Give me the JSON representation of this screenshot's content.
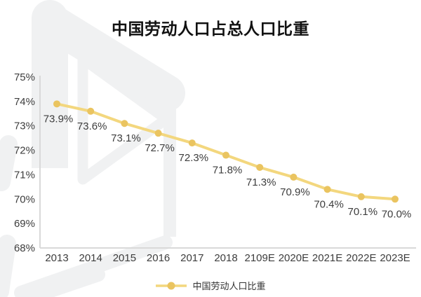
{
  "title": "中国劳动人口占总人口比重",
  "legend": {
    "label": "中国劳动人口比重"
  },
  "colors": {
    "line": "#f3d77e",
    "marker": "#eac460",
    "label_text": "#3d3d3d",
    "axis": "#d9d9d9",
    "title_text": "#111111",
    "legend_text": "#333333",
    "watermark": "#f0f1f2"
  },
  "chart_data": {
    "type": "line",
    "title": "中国劳动人口占总人口比重",
    "categories": [
      "2013",
      "2014",
      "2015",
      "2016",
      "2017",
      "2018",
      "2109E",
      "2020E",
      "2021E",
      "2022E",
      "2023E"
    ],
    "series": [
      {
        "name": "中国劳动人口比重",
        "values": [
          73.9,
          73.6,
          73.1,
          72.7,
          72.3,
          71.8,
          71.3,
          70.9,
          70.4,
          70.1,
          70.0
        ]
      }
    ],
    "data_labels": [
      "73.9%",
      "73.6%",
      "73.1%",
      "72.7%",
      "72.3%",
      "71.8%",
      "71.3%",
      "70.9%",
      "70.4%",
      "70.1%",
      "70.0%"
    ],
    "xlabel": "",
    "ylabel": "",
    "ylim": [
      68,
      75
    ],
    "yticks": [
      75,
      74,
      73,
      72,
      71,
      70,
      69,
      68
    ],
    "ytick_labels": [
      "75%",
      "74%",
      "73%",
      "72%",
      "71%",
      "70%",
      "69%",
      "68%"
    ],
    "grid": false,
    "legend_position": "bottom"
  }
}
